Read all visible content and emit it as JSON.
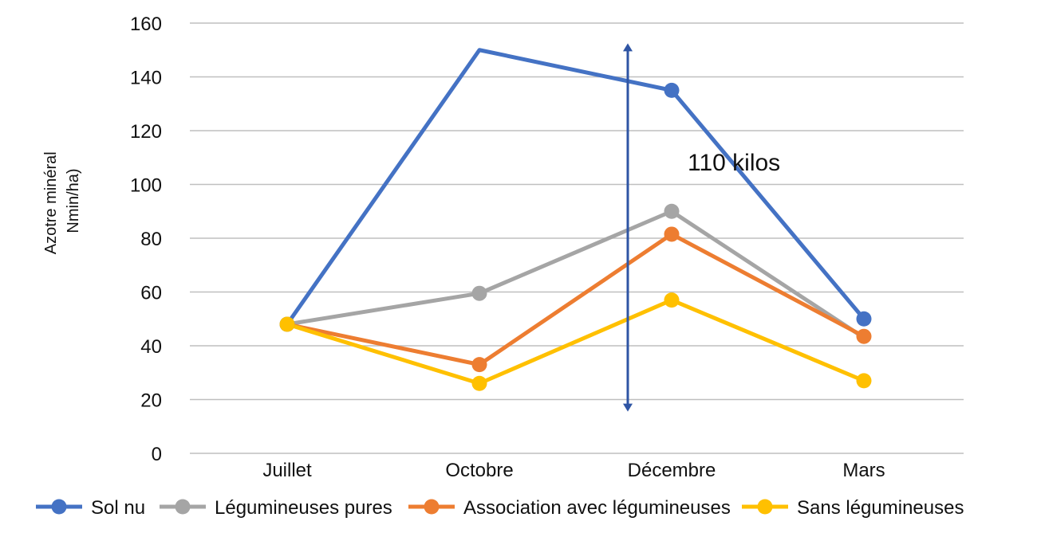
{
  "chart_data": {
    "type": "line",
    "categories": [
      "Juillet",
      "Octobre",
      "Décembre",
      "Mars"
    ],
    "ylabel_lines": [
      "Azotre minéral",
      "Nmin/ha)"
    ],
    "ylim": [
      0,
      160
    ],
    "yticks": [
      0,
      20,
      40,
      60,
      80,
      100,
      120,
      140,
      160
    ],
    "grid": true,
    "legend_position": "bottom",
    "series": [
      {
        "name": "Sol nu",
        "color": "#4472C4",
        "values": [
          48,
          150,
          135,
          50
        ],
        "markers": [
          true,
          false,
          true,
          true
        ]
      },
      {
        "name": "Légumineuses pures",
        "color": "#A5A5A5",
        "values": [
          48,
          59.5,
          90,
          43
        ],
        "markers": [
          false,
          true,
          true,
          false
        ]
      },
      {
        "name": "Association avec légumineuses",
        "color": "#ED7D31",
        "values": [
          48,
          33,
          81.5,
          43.5
        ],
        "markers": [
          false,
          true,
          true,
          true
        ]
      },
      {
        "name": "Sans légumineuses",
        "color": "#FFC000",
        "values": [
          48,
          26,
          57,
          27
        ],
        "markers": [
          true,
          true,
          true,
          true
        ]
      }
    ],
    "annotation": {
      "text": "110 kilos",
      "arrow_color": "#2F55A4",
      "arrow_from": 17,
      "arrow_to": 151
    }
  }
}
